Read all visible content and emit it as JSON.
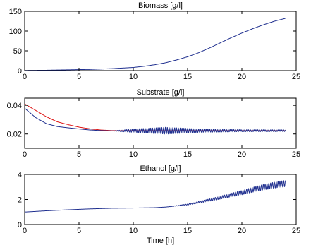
{
  "chart_data": [
    {
      "type": "line",
      "title": "Biomass [g/l]",
      "xlabel": "",
      "ylabel": "",
      "xlim": [
        0,
        25
      ],
      "ylim": [
        0,
        150
      ],
      "xticks": [
        "0",
        "5",
        "10",
        "15",
        "20",
        "25"
      ],
      "yticks": [
        "0",
        "50",
        "100",
        "150"
      ],
      "xtick_values": [
        0,
        5,
        10,
        15,
        20,
        25
      ],
      "ytick_values": [
        0,
        50,
        100,
        150
      ],
      "grid": false,
      "series": [
        {
          "color": "#1f2f8f",
          "x": [
            0,
            2,
            4,
            6,
            8,
            10,
            11,
            12,
            13,
            14,
            15,
            16,
            17,
            18,
            19,
            20,
            21,
            22,
            23,
            24
          ],
          "y": [
            0.5,
            1,
            2,
            3,
            5,
            8,
            11,
            15,
            20,
            27,
            35,
            45,
            57,
            70,
            83,
            95,
            106,
            116,
            125,
            132
          ]
        }
      ]
    },
    {
      "type": "line",
      "title": "Substrate [g/l]",
      "xlabel": "",
      "ylabel": "",
      "xlim": [
        0,
        25
      ],
      "ylim": [
        0.01,
        0.045
      ],
      "xticks": [
        "0",
        "5",
        "10",
        "15",
        "20",
        "25"
      ],
      "yticks": [
        "0.02",
        "0.04"
      ],
      "xtick_values": [
        0,
        5,
        10,
        15,
        20,
        25
      ],
      "ytick_values": [
        0.02,
        0.04
      ],
      "grid": false,
      "series": [
        {
          "color": "#dd1111",
          "x": [
            0,
            1,
            2,
            3,
            4,
            5,
            6,
            7,
            8,
            9,
            10,
            12,
            14,
            16,
            18,
            20,
            22,
            24
          ],
          "y": [
            0.041,
            0.0365,
            0.032,
            0.0285,
            0.0265,
            0.0248,
            0.0236,
            0.0228,
            0.0224,
            0.0223,
            0.0223,
            0.0223,
            0.0223,
            0.0223,
            0.0223,
            0.0223,
            0.0223,
            0.0223
          ]
        },
        {
          "color": "#1f2f8f",
          "x": [
            0,
            1,
            2,
            3,
            4,
            5,
            6,
            7,
            8,
            9,
            10,
            12,
            14,
            16,
            18,
            20,
            22,
            24
          ],
          "y": [
            0.038,
            0.0315,
            0.0272,
            0.0252,
            0.0243,
            0.0235,
            0.0228,
            0.0224,
            0.0222,
            0.0222,
            0.0223,
            0.0223,
            0.0223,
            0.0223,
            0.0223,
            0.0223,
            0.0223,
            0.0223
          ],
          "oscillation": [
            {
              "x": 8,
              "amp": 0.0
            },
            {
              "x": 10,
              "amp": 0.0012
            },
            {
              "x": 13,
              "amp": 0.0024
            },
            {
              "x": 16,
              "amp": 0.0012
            },
            {
              "x": 20,
              "amp": 0.0007
            },
            {
              "x": 24,
              "amp": 0.0006
            }
          ],
          "oscillation_period": 0.17
        }
      ]
    },
    {
      "type": "line",
      "title": "Ethanol [g/l]",
      "xlabel": "Time [h]",
      "ylabel": "",
      "xlim": [
        0,
        25
      ],
      "ylim": [
        0,
        4
      ],
      "xticks": [
        "0",
        "5",
        "10",
        "15",
        "20",
        "25"
      ],
      "yticks": [
        "0",
        "2",
        "4"
      ],
      "xtick_values": [
        0,
        5,
        10,
        15,
        20,
        25
      ],
      "ytick_values": [
        0,
        2,
        4
      ],
      "grid": false,
      "series": [
        {
          "color": "#1f2f8f",
          "x": [
            0,
            2,
            4,
            6,
            8,
            10,
            12,
            13,
            14,
            15,
            16,
            17,
            18,
            19,
            20,
            21,
            22,
            23,
            24
          ],
          "y": [
            1.0,
            1.1,
            1.18,
            1.25,
            1.3,
            1.32,
            1.35,
            1.4,
            1.5,
            1.6,
            1.78,
            1.95,
            2.15,
            2.35,
            2.55,
            2.78,
            2.98,
            3.15,
            3.28
          ],
          "oscillation": [
            {
              "x": 13,
              "amp": 0.0
            },
            {
              "x": 15,
              "amp": 0.04
            },
            {
              "x": 18,
              "amp": 0.12
            },
            {
              "x": 21,
              "amp": 0.2
            },
            {
              "x": 24,
              "amp": 0.26
            }
          ],
          "oscillation_period": 0.17
        }
      ]
    }
  ]
}
